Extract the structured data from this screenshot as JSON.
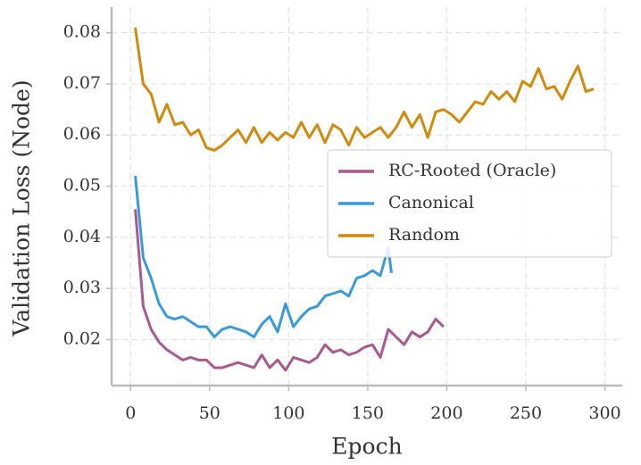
{
  "chart_data": {
    "type": "line",
    "xlabel": "Epoch",
    "ylabel": "Validation Loss (Node)",
    "xlim": [
      -12,
      311
    ],
    "ylim": [
      0.011,
      0.085
    ],
    "xticks": [
      0,
      50,
      100,
      150,
      200,
      250,
      300
    ],
    "yticks": [
      0.02,
      0.03,
      0.04,
      0.05,
      0.06,
      0.07,
      0.08
    ],
    "grid": true,
    "legend": "center right",
    "series": [
      {
        "name": "RC-Rooted (Oracle)",
        "color": "#a8598e",
        "x": [
          3,
          8,
          13,
          18,
          23,
          28,
          33,
          38,
          43,
          48,
          53,
          58,
          63,
          68,
          73,
          78,
          83,
          88,
          93,
          98,
          103,
          108,
          113,
          118,
          123,
          128,
          133,
          138,
          143,
          148,
          153,
          158,
          163,
          168,
          173,
          178,
          183,
          188,
          193,
          198
        ],
        "values": [
          0.0455,
          0.0265,
          0.022,
          0.0195,
          0.018,
          0.017,
          0.016,
          0.0165,
          0.016,
          0.016,
          0.0145,
          0.0145,
          0.015,
          0.0155,
          0.015,
          0.0145,
          0.017,
          0.0145,
          0.016,
          0.014,
          0.0165,
          0.016,
          0.0155,
          0.0165,
          0.019,
          0.0175,
          0.018,
          0.017,
          0.0175,
          0.0185,
          0.019,
          0.0165,
          0.022,
          0.0205,
          0.019,
          0.0215,
          0.0205,
          0.0215,
          0.024,
          0.0225
        ]
      },
      {
        "name": "Canonical",
        "color": "#3a9ad9",
        "x": [
          3,
          8,
          13,
          18,
          23,
          28,
          33,
          38,
          43,
          48,
          53,
          58,
          63,
          68,
          73,
          78,
          83,
          88,
          93,
          98,
          103,
          108,
          113,
          118,
          123,
          128,
          133,
          138,
          143,
          148,
          153,
          158,
          163,
          165
        ],
        "values": [
          0.052,
          0.036,
          0.032,
          0.027,
          0.0245,
          0.024,
          0.0245,
          0.0235,
          0.0225,
          0.0225,
          0.0205,
          0.022,
          0.0225,
          0.022,
          0.0215,
          0.0205,
          0.023,
          0.0245,
          0.0215,
          0.027,
          0.0225,
          0.0245,
          0.026,
          0.0265,
          0.0285,
          0.029,
          0.0295,
          0.0285,
          0.032,
          0.0325,
          0.0335,
          0.0325,
          0.038,
          0.033
        ]
      },
      {
        "name": "Random",
        "color": "#d08a0e",
        "x": [
          3,
          8,
          13,
          18,
          23,
          28,
          33,
          38,
          43,
          48,
          53,
          58,
          63,
          68,
          73,
          78,
          83,
          88,
          93,
          98,
          103,
          108,
          113,
          118,
          123,
          128,
          133,
          138,
          143,
          148,
          153,
          158,
          163,
          168,
          173,
          178,
          183,
          188,
          193,
          198,
          203,
          208,
          213,
          218,
          223,
          228,
          233,
          238,
          243,
          248,
          253,
          258,
          263,
          268,
          273,
          278,
          283,
          288,
          293
        ],
        "values": [
          0.081,
          0.07,
          0.068,
          0.0625,
          0.066,
          0.062,
          0.0625,
          0.06,
          0.061,
          0.0575,
          0.057,
          0.058,
          0.0595,
          0.061,
          0.0585,
          0.0615,
          0.0585,
          0.0605,
          0.059,
          0.0605,
          0.0595,
          0.0625,
          0.0595,
          0.062,
          0.0585,
          0.062,
          0.061,
          0.058,
          0.0615,
          0.0595,
          0.0605,
          0.0615,
          0.0595,
          0.0615,
          0.0645,
          0.0615,
          0.064,
          0.0595,
          0.0645,
          0.065,
          0.064,
          0.0625,
          0.0645,
          0.0665,
          0.066,
          0.0685,
          0.067,
          0.0685,
          0.0665,
          0.0705,
          0.0695,
          0.073,
          0.069,
          0.0695,
          0.067,
          0.0705,
          0.0735,
          0.0685,
          0.069
        ]
      }
    ]
  }
}
